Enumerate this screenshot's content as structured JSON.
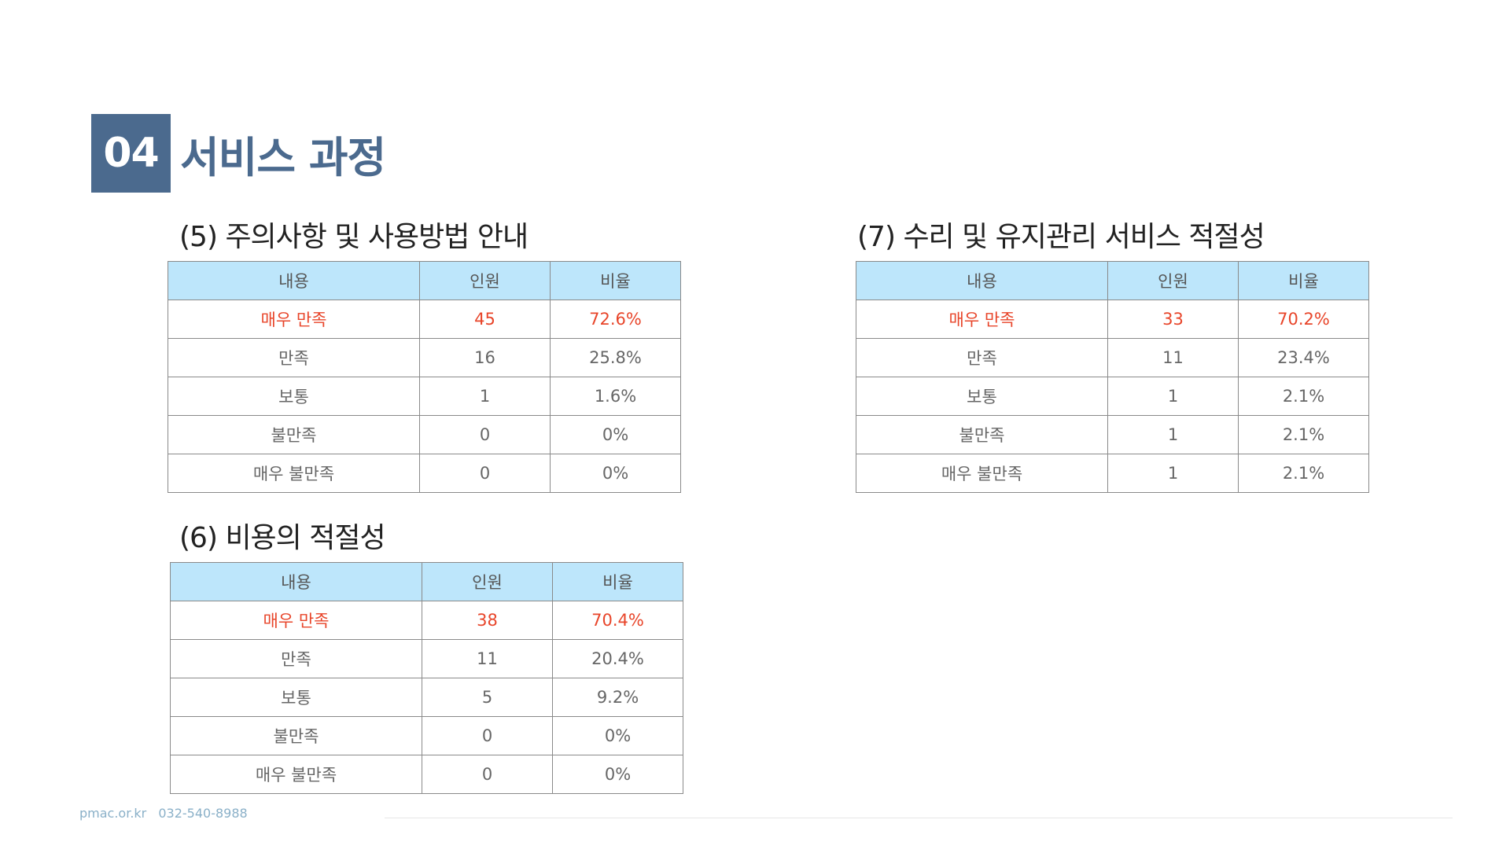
{
  "section": {
    "number": "04",
    "title": "서비스 과정"
  },
  "blocks": [
    {
      "title": "(5) 주의사항 및 사용방법 안내",
      "headers": [
        "내용",
        "인원",
        "비율"
      ],
      "rows": [
        {
          "label": "매우 만족",
          "count": "45",
          "ratio": "72.6%"
        },
        {
          "label": "만족",
          "count": "16",
          "ratio": "25.8%"
        },
        {
          "label": "보통",
          "count": "1",
          "ratio": "1.6%"
        },
        {
          "label": "불만족",
          "count": "0",
          "ratio": "0%"
        },
        {
          "label": "매우 불만족",
          "count": "0",
          "ratio": "0%"
        }
      ]
    },
    {
      "title": "(6) 비용의 적절성",
      "headers": [
        "내용",
        "인원",
        "비율"
      ],
      "rows": [
        {
          "label": "매우 만족",
          "count": "38",
          "ratio": "70.4%"
        },
        {
          "label": "만족",
          "count": "11",
          "ratio": "20.4%"
        },
        {
          "label": "보통",
          "count": "5",
          "ratio": "9.2%"
        },
        {
          "label": "불만족",
          "count": "0",
          "ratio": "0%"
        },
        {
          "label": "매우 불만족",
          "count": "0",
          "ratio": "0%"
        }
      ]
    },
    {
      "title": "(7) 수리 및 유지관리 서비스 적절성",
      "headers": [
        "내용",
        "인원",
        "비율"
      ],
      "rows": [
        {
          "label": "매우 만족",
          "count": "33",
          "ratio": "70.2%"
        },
        {
          "label": "만족",
          "count": "11",
          "ratio": "23.4%"
        },
        {
          "label": "보통",
          "count": "1",
          "ratio": "2.1%"
        },
        {
          "label": "불만족",
          "count": "1",
          "ratio": "2.1%"
        },
        {
          "label": "매우 불만족",
          "count": "1",
          "ratio": "2.1%"
        }
      ]
    }
  ],
  "colors": {
    "section_badge": "#4b6a8e",
    "header_fill": "#bde6fb",
    "highlight_text": "#e8452a"
  },
  "footer": {
    "site": "pmac.or.kr",
    "phone": "032-540-8988"
  }
}
